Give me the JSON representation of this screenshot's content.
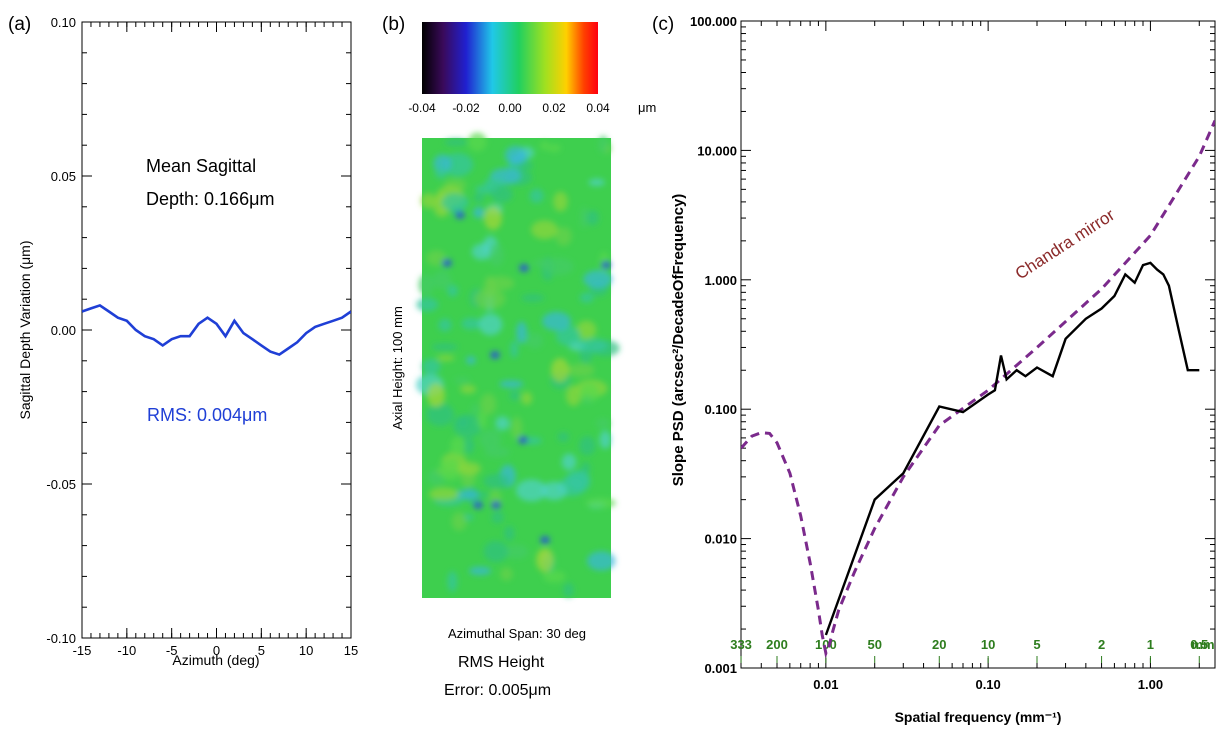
{
  "panel_labels": [
    "(a)",
    "(b)",
    "(c)"
  ],
  "panel_a": {
    "ylabel": "Sagittal Depth Variation (μm)",
    "xlabel": "Azimuth (deg)",
    "annotation_mean_line1": "Mean Sagittal",
    "annotation_mean_line2": "Depth: 0.166μm",
    "annotation_rms": "RMS: 0.004μm"
  },
  "panel_b": {
    "colorbar_ticks": [
      "-0.04",
      "-0.02",
      "0.00",
      "0.02",
      "0.04"
    ],
    "colorbar_unit": "μm",
    "axial_label": "Axial Height:   100 mm",
    "azimuthal_label": "Azimuthal Span:   30 deg",
    "rms_line1": "RMS Height",
    "rms_line2": "Error: 0.005μm"
  },
  "panel_c": {
    "ylabel": "Slope PSD (arcsec²/DecadeOfFrequency)",
    "xlabel": "Spatial frequency (mm⁻¹)",
    "curve_label": "Chandra mirror",
    "wavelength_ticks": [
      "333",
      "200",
      "100",
      "50",
      "20",
      "10",
      "5",
      "2",
      "1",
      "0.5"
    ],
    "wavelength_unit": "mm",
    "colors": {
      "measured": "#000000",
      "chandra": "#7b2a8c",
      "curve_label": "#8b2a2a",
      "wavelength": "#2e7d1e"
    }
  },
  "chart_data": [
    {
      "type": "line",
      "xlabel": "Azimuth (deg)",
      "ylabel": "Sagittal Depth Variation (μm)",
      "xlim": [
        -15,
        15
      ],
      "ylim": [
        -0.1,
        0.1
      ],
      "x_ticks": [
        "-15",
        "-10",
        "-5",
        "0",
        "5",
        "10",
        "15"
      ],
      "y_ticks": [
        "0.10",
        "0.05",
        "0.00",
        "-0.05",
        "-0.10"
      ],
      "series": [
        {
          "color": "#1f3fd6",
          "x": [
            -15,
            -14,
            -13,
            -12,
            -11,
            -10,
            -9,
            -8,
            -7,
            -6,
            -5,
            -4,
            -3,
            -2,
            -1,
            0,
            1,
            2,
            3,
            4,
            5,
            6,
            7,
            8,
            9,
            10,
            11,
            12,
            13,
            14,
            15
          ],
          "y": [
            0.006,
            0.007,
            0.008,
            0.006,
            0.004,
            0.003,
            0.0,
            -0.002,
            -0.003,
            -0.005,
            -0.003,
            -0.002,
            -0.002,
            0.002,
            0.004,
            0.002,
            -0.002,
            0.003,
            -0.001,
            -0.003,
            -0.005,
            -0.007,
            -0.008,
            -0.006,
            -0.004,
            -0.001,
            0.001,
            0.002,
            0.003,
            0.004,
            0.006
          ]
        }
      ]
    },
    {
      "type": "heatmap",
      "colorbar_range": [
        -0.04,
        0.04
      ],
      "colorbar_unit": "μm",
      "axial_height_mm": 100,
      "azimuthal_span_deg": 30
    },
    {
      "type": "line",
      "log_x": true,
      "log_y": true,
      "xlim": [
        0.003,
        2.5
      ],
      "ylim": [
        0.001,
        100
      ],
      "x_ticks": [
        "0.01",
        "0.10",
        "1.00"
      ],
      "y_ticks": [
        "0.001",
        "0.010",
        "0.100",
        "1.000",
        "10.000",
        "100.000"
      ],
      "xlabel": "Spatial frequency (mm⁻¹)",
      "ylabel": "Slope PSD (arcsec²/DecadeOfFrequency)",
      "series": [
        {
          "color": "#000000",
          "style": "solid",
          "x": [
            0.01,
            0.02,
            0.03,
            0.05,
            0.07,
            0.1,
            0.11,
            0.12,
            0.13,
            0.15,
            0.17,
            0.2,
            0.25,
            0.3,
            0.4,
            0.5,
            0.6,
            0.7,
            0.8,
            0.9,
            1.0,
            1.1,
            1.2,
            1.3,
            1.5,
            1.7,
            2.0
          ],
          "y": [
            0.0018,
            0.02,
            0.032,
            0.105,
            0.095,
            0.13,
            0.14,
            0.26,
            0.17,
            0.2,
            0.18,
            0.21,
            0.18,
            0.35,
            0.5,
            0.6,
            0.75,
            1.1,
            0.95,
            1.3,
            1.35,
            1.2,
            1.1,
            0.9,
            0.4,
            0.2,
            0.2
          ]
        },
        {
          "name": "Chandra mirror",
          "color": "#7b2a8c",
          "style": "dashed",
          "x": [
            0.003,
            0.0035,
            0.004,
            0.0045,
            0.005,
            0.006,
            0.007,
            0.008,
            0.009,
            0.0095,
            0.01,
            0.0105,
            0.011,
            0.012,
            0.015,
            0.02,
            0.03,
            0.05,
            0.1,
            0.2,
            0.5,
            1.0,
            2.0,
            2.5
          ],
          "y": [
            0.05,
            0.062,
            0.066,
            0.065,
            0.055,
            0.032,
            0.015,
            0.0065,
            0.0028,
            0.0018,
            0.0013,
            0.0015,
            0.0019,
            0.0028,
            0.0055,
            0.012,
            0.03,
            0.075,
            0.14,
            0.3,
            0.85,
            2.2,
            9,
            17
          ]
        }
      ]
    }
  ]
}
